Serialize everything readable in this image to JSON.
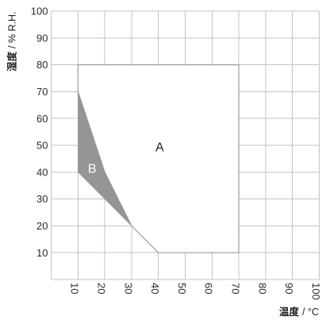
{
  "chart_data": {
    "type": "area",
    "xlabel": {
      "main": "温度",
      "unit": "/ °C"
    },
    "ylabel": {
      "main": "湿度",
      "unit": "/ % R.H."
    },
    "xlim": [
      0,
      100
    ],
    "ylim": [
      0,
      100
    ],
    "xticks": [
      10,
      20,
      30,
      40,
      50,
      60,
      70,
      80,
      90,
      100
    ],
    "yticks": [
      10,
      20,
      30,
      40,
      50,
      60,
      70,
      80,
      90,
      100
    ],
    "grid": true,
    "series": [
      {
        "name": "A",
        "polygon": [
          [
            10,
            80
          ],
          [
            70,
            80
          ],
          [
            70,
            10
          ],
          [
            40,
            10
          ],
          [
            30,
            20
          ],
          [
            20,
            40
          ],
          [
            10,
            70
          ]
        ],
        "fill": "#ffffff",
        "stroke": "#9c9c9c",
        "label_color": "#1f1f1f"
      },
      {
        "name": "B",
        "polygon": [
          [
            10,
            70
          ],
          [
            20,
            40
          ],
          [
            30,
            20
          ],
          [
            20,
            30
          ],
          [
            10,
            40
          ]
        ],
        "fill": "#959595",
        "stroke": "#959595",
        "label_color": "#ffffff"
      }
    ]
  },
  "style": {
    "grid_color": "#c3c3c3",
    "text_color": "#2b2b2b",
    "background": "#ffffff"
  }
}
